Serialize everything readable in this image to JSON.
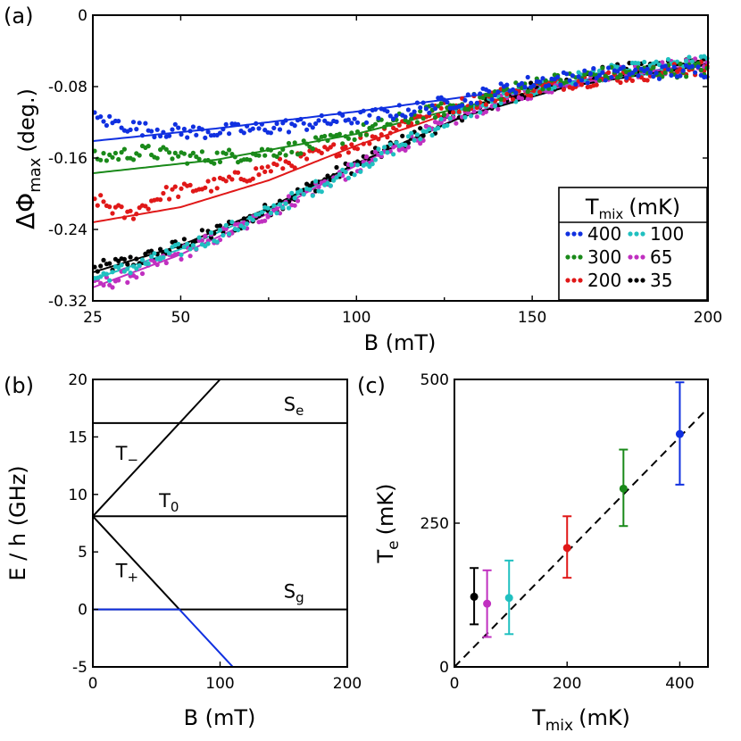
{
  "panels": [
    "(a)",
    "(b)",
    "(c)"
  ],
  "colors": {
    "400": "#1030e0",
    "300": "#1a8a1a",
    "200": "#e01818",
    "100": "#20c0c0",
    "65": "#c030c0",
    "35": "#000000",
    "level_blue": "#1030e0",
    "dashed": "#000000"
  },
  "chart_data": [
    {
      "id": "a",
      "type": "scatter",
      "xlabel": "B (mT)",
      "ylabel_main": "ΔΦ",
      "ylabel_sub": "max",
      "ylabel_unit": "(deg.)",
      "xlim": [
        25,
        200
      ],
      "ylim": [
        -0.32,
        0
      ],
      "xticks": [
        25,
        50,
        100,
        150,
        200
      ],
      "yticks": [
        0,
        -0.08,
        -0.16,
        -0.24,
        -0.32
      ],
      "ytick_labels": [
        "0",
        "-0.08",
        "-0.16",
        "-0.24",
        "-0.32"
      ],
      "legend": {
        "title_main": "T",
        "title_sub": "mix",
        "title_unit": "(mK)",
        "placement": "lower-right",
        "entries": [
          "400",
          "300",
          "200",
          "100",
          "65",
          "35"
        ]
      },
      "series": [
        {
          "name": "400",
          "fit": {
            "x": [
              25,
              60,
              100,
              130,
              160,
              200
            ],
            "y": [
              -0.141,
              -0.127,
              -0.108,
              -0.092,
              -0.075,
              -0.054
            ]
          },
          "points_from": [
            [
              25,
              -0.115
            ],
            [
              40,
              -0.128
            ],
            [
              55,
              -0.131
            ],
            [
              70,
              -0.128
            ],
            [
              90,
              -0.12
            ],
            [
              110,
              -0.11
            ],
            [
              130,
              -0.095
            ],
            [
              150,
              -0.075
            ],
            [
              170,
              -0.066
            ],
            [
              200,
              -0.062
            ]
          ]
        },
        {
          "name": "300",
          "fit": {
            "x": [
              25,
              60,
              100,
              130,
              160,
              200
            ],
            "y": [
              -0.177,
              -0.162,
              -0.133,
              -0.103,
              -0.077,
              -0.056
            ]
          },
          "points_from": [
            [
              25,
              -0.16
            ],
            [
              40,
              -0.153
            ],
            [
              55,
              -0.16
            ],
            [
              70,
              -0.156
            ],
            [
              90,
              -0.144
            ],
            [
              110,
              -0.12
            ],
            [
              130,
              -0.1
            ],
            [
              150,
              -0.077
            ],
            [
              170,
              -0.066
            ],
            [
              200,
              -0.06
            ]
          ]
        },
        {
          "name": "200",
          "fit": {
            "x": [
              25,
              50,
              75,
              100,
              130,
              160,
              200
            ],
            "y": [
              -0.232,
              -0.215,
              -0.185,
              -0.146,
              -0.105,
              -0.076,
              -0.055
            ]
          },
          "points_from": [
            [
              25,
              -0.205
            ],
            [
              35,
              -0.225
            ],
            [
              45,
              -0.2
            ],
            [
              60,
              -0.19
            ],
            [
              80,
              -0.166
            ],
            [
              100,
              -0.144
            ],
            [
              120,
              -0.11
            ],
            [
              140,
              -0.09
            ],
            [
              160,
              -0.075
            ],
            [
              200,
              -0.058
            ]
          ]
        },
        {
          "name": "100",
          "fit": {
            "x": [
              25,
              50,
              75,
              100,
              130,
              160,
              200
            ],
            "y": [
              -0.296,
              -0.262,
              -0.218,
              -0.167,
              -0.114,
              -0.08,
              -0.055
            ]
          },
          "points_from": [
            [
              25,
              -0.295
            ],
            [
              40,
              -0.278
            ],
            [
              55,
              -0.255
            ],
            [
              70,
              -0.23
            ],
            [
              90,
              -0.19
            ],
            [
              110,
              -0.15
            ],
            [
              130,
              -0.11
            ],
            [
              150,
              -0.083
            ],
            [
              170,
              -0.065
            ],
            [
              200,
              -0.052
            ]
          ]
        },
        {
          "name": "65",
          "fit": {
            "x": [
              25,
              50,
              75,
              100,
              130,
              160,
              200
            ],
            "y": [
              -0.305,
              -0.268,
              -0.222,
              -0.168,
              -0.113,
              -0.078,
              -0.053
            ]
          },
          "points_from": [
            [
              25,
              -0.305
            ],
            [
              40,
              -0.285
            ],
            [
              55,
              -0.258
            ],
            [
              70,
              -0.232
            ],
            [
              90,
              -0.19
            ],
            [
              110,
              -0.152
            ],
            [
              130,
              -0.112
            ],
            [
              150,
              -0.085
            ],
            [
              170,
              -0.065
            ],
            [
              200,
              -0.055
            ]
          ]
        },
        {
          "name": "35",
          "fit": {
            "x": [
              25,
              50,
              75,
              100,
              130,
              160,
              200
            ],
            "y": [
              -0.288,
              -0.258,
              -0.216,
              -0.166,
              -0.114,
              -0.08,
              -0.055
            ]
          },
          "points_from": [
            [
              25,
              -0.285
            ],
            [
              40,
              -0.272
            ],
            [
              55,
              -0.25
            ],
            [
              70,
              -0.228
            ],
            [
              90,
              -0.186
            ],
            [
              110,
              -0.148
            ],
            [
              130,
              -0.11
            ],
            [
              150,
              -0.083
            ],
            [
              170,
              -0.065
            ],
            [
              200,
              -0.05
            ]
          ]
        }
      ]
    },
    {
      "id": "b",
      "type": "line",
      "xlabel": "B (mT)",
      "ylabel": "E / h (GHz)",
      "xlim": [
        0,
        200
      ],
      "ylim": [
        -5,
        20
      ],
      "xticks": [
        0,
        100,
        200
      ],
      "yticks": [
        -5,
        0,
        5,
        10,
        15,
        20
      ],
      "level_labels": [
        {
          "main": "S",
          "sub": "e",
          "at": [
            150,
            17.3
          ]
        },
        {
          "main": "T",
          "sub": "−",
          "at": [
            18,
            13.0
          ]
        },
        {
          "main": "T",
          "sub": "0",
          "at": [
            52,
            8.9
          ]
        },
        {
          "main": "T",
          "sub": "+",
          "at": [
            18,
            2.8
          ]
        },
        {
          "main": "S",
          "sub": "g",
          "at": [
            150,
            1.0
          ]
        }
      ],
      "lines": [
        {
          "name": "S_e",
          "x": [
            0,
            200
          ],
          "y": [
            16.2,
            16.2
          ],
          "color": "black"
        },
        {
          "name": "T_0",
          "x": [
            0,
            200
          ],
          "y": [
            8.1,
            8.1
          ],
          "color": "black"
        },
        {
          "name": "S_g",
          "x": [
            0,
            200
          ],
          "y": [
            0,
            0
          ],
          "color": "black"
        },
        {
          "name": "T_minus",
          "x": [
            0,
            100
          ],
          "y": [
            8.1,
            20
          ],
          "color": "black"
        },
        {
          "name": "T_plus",
          "x": [
            0,
            68
          ],
          "y": [
            8.1,
            0
          ],
          "color": "black"
        },
        {
          "name": "ground",
          "x": [
            0,
            68,
            110
          ],
          "y": [
            0,
            0,
            -5
          ],
          "color": "blue"
        }
      ]
    },
    {
      "id": "c",
      "type": "scatter",
      "xlabel_main": "T",
      "xlabel_sub": "mix",
      "xlabel_unit": "(mK)",
      "ylabel_main": "T",
      "ylabel_sub": "e",
      "ylabel_unit": "(mK)",
      "xlim": [
        0,
        450
      ],
      "ylim": [
        0,
        500
      ],
      "xticks": [
        0,
        200,
        400
      ],
      "yticks": [
        0,
        250,
        500
      ],
      "reference_line": {
        "x": [
          0,
          450
        ],
        "y": [
          0,
          450
        ],
        "style": "dashed"
      },
      "points": [
        {
          "name": "35",
          "x": 35,
          "y": 122,
          "err_low": 48,
          "err_high": 50
        },
        {
          "name": "65",
          "x": 58,
          "y": 110,
          "err_low": 58,
          "err_high": 58
        },
        {
          "name": "100",
          "x": 97,
          "y": 120,
          "err_low": 63,
          "err_high": 65
        },
        {
          "name": "200",
          "x": 200,
          "y": 207,
          "err_low": 52,
          "err_high": 55
        },
        {
          "name": "300",
          "x": 300,
          "y": 310,
          "err_low": 65,
          "err_high": 68
        },
        {
          "name": "400",
          "x": 400,
          "y": 405,
          "err_low": 88,
          "err_high": 90
        }
      ]
    }
  ]
}
